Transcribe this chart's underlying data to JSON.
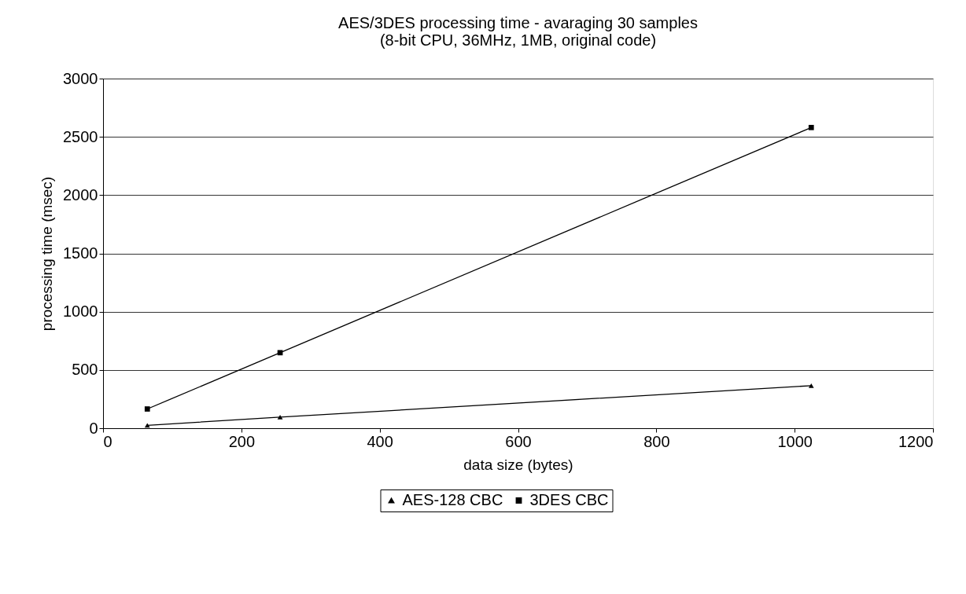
{
  "chart_data": {
    "type": "line",
    "title": [
      "AES/3DES processing time - avaraging 30 samples",
      "(8-bit CPU, 36MHz, 1MB, original code)"
    ],
    "xlabel": "data size (bytes)",
    "ylabel": "processing time (msec)",
    "x": [
      64,
      256,
      1024
    ],
    "series": [
      {
        "name": "AES-128 CBC",
        "color": "#000000",
        "marker": "triangle",
        "values": [
          25,
          95,
          365
        ]
      },
      {
        "name": "3DES CBC",
        "color": "#000000",
        "marker": "square",
        "values": [
          165,
          648,
          2580
        ]
      }
    ],
    "xlim": [
      0,
      1200
    ],
    "xticks": [
      0,
      200,
      400,
      600,
      800,
      1000,
      1200
    ],
    "ylim": [
      0,
      3000
    ],
    "yticks": [
      0,
      500,
      1000,
      1500,
      2000,
      2500,
      3000
    ],
    "grid": "y",
    "legend": "bottom",
    "line_style": "solid"
  }
}
